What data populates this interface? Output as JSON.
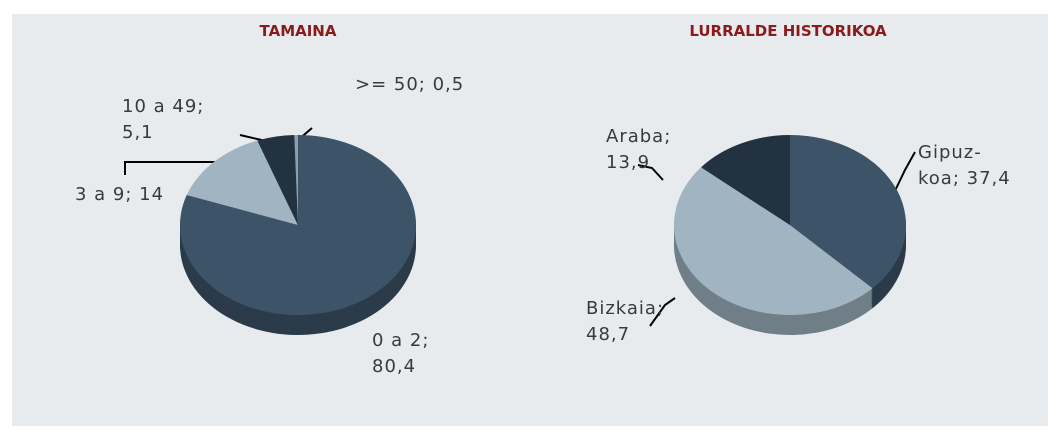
{
  "chart_data": [
    {
      "type": "pie",
      "title": "TAMAINA",
      "categories": [
        "0 a 2",
        "3 a 9",
        "10 a 49",
        ">= 50"
      ],
      "values": [
        80.4,
        14,
        5.1,
        0.5
      ],
      "value_labels": [
        "0 a 2; 80,4",
        "3 a 9; 14",
        "10 a 49; 5,1",
        ">= 50; 0,5"
      ],
      "colors": [
        "#3d5468",
        "#a0b5c1",
        "#233240",
        "#8a9eab"
      ]
    },
    {
      "type": "pie",
      "title": "LURRALDE HISTORIKOA",
      "categories": [
        "Gipuzkoa",
        "Bizkaia",
        "Araba"
      ],
      "values": [
        37.4,
        48.7,
        13.9
      ],
      "value_labels": [
        "Gipuz-koa; 37,4",
        "Bizkaia; 48,7",
        "Araba; 13,9"
      ],
      "colors": [
        "#3d5468",
        "#a0b5c1",
        "#233240"
      ]
    }
  ]
}
